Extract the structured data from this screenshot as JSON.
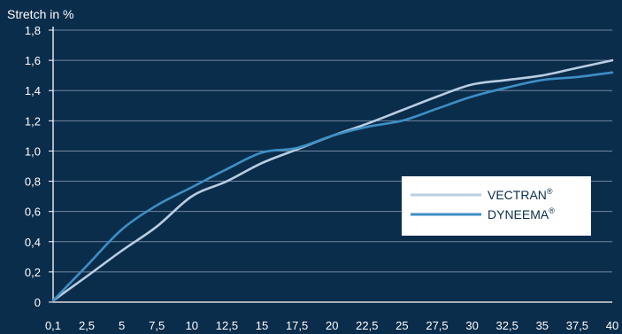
{
  "chart_data": {
    "type": "line",
    "ylabel": "Stretch in %",
    "xlabel": "",
    "x": [
      0.1,
      2.5,
      5,
      7.5,
      10,
      12.5,
      15,
      17.5,
      20,
      22.5,
      25,
      27.5,
      30,
      32.5,
      35,
      37.5,
      40
    ],
    "x_tick_labels": [
      "0,1",
      "2,5",
      "5",
      "7,5",
      "10",
      "12,5",
      "15",
      "17,5",
      "20",
      "22,5",
      "25",
      "27,5",
      "30",
      "32,5",
      "35",
      "37,5",
      "40"
    ],
    "y_tick_values": [
      0,
      0.2,
      0.4,
      0.6,
      0.8,
      1.0,
      1.2,
      1.4,
      1.6,
      1.8
    ],
    "y_tick_labels": [
      "0",
      "0,2",
      "0,4",
      "0,6",
      "0,8",
      "1,0",
      "1,2",
      "1,4",
      "1,6",
      "1,8"
    ],
    "xlim": [
      0.1,
      40
    ],
    "ylim": [
      0,
      1.8
    ],
    "grid": "horizontal",
    "legend_position": "right",
    "series": [
      {
        "name": "VECTRAN",
        "mark": "®",
        "color": "#b9cde2",
        "values": [
          0.01,
          0.17,
          0.34,
          0.5,
          0.7,
          0.8,
          0.92,
          1.01,
          1.1,
          1.18,
          1.27,
          1.36,
          1.44,
          1.47,
          1.5,
          1.55,
          1.6
        ]
      },
      {
        "name": "DYNEEMA",
        "mark": "®",
        "color": "#3d8fc4",
        "values": [
          0.01,
          0.24,
          0.48,
          0.64,
          0.76,
          0.88,
          0.99,
          1.02,
          1.1,
          1.16,
          1.2,
          1.28,
          1.36,
          1.42,
          1.47,
          1.49,
          1.52
        ]
      }
    ]
  },
  "colors": {
    "background": "#0b2d4c",
    "grid": "#6f879f",
    "axis": "#ffffff",
    "legend_bg": "#ffffff"
  }
}
